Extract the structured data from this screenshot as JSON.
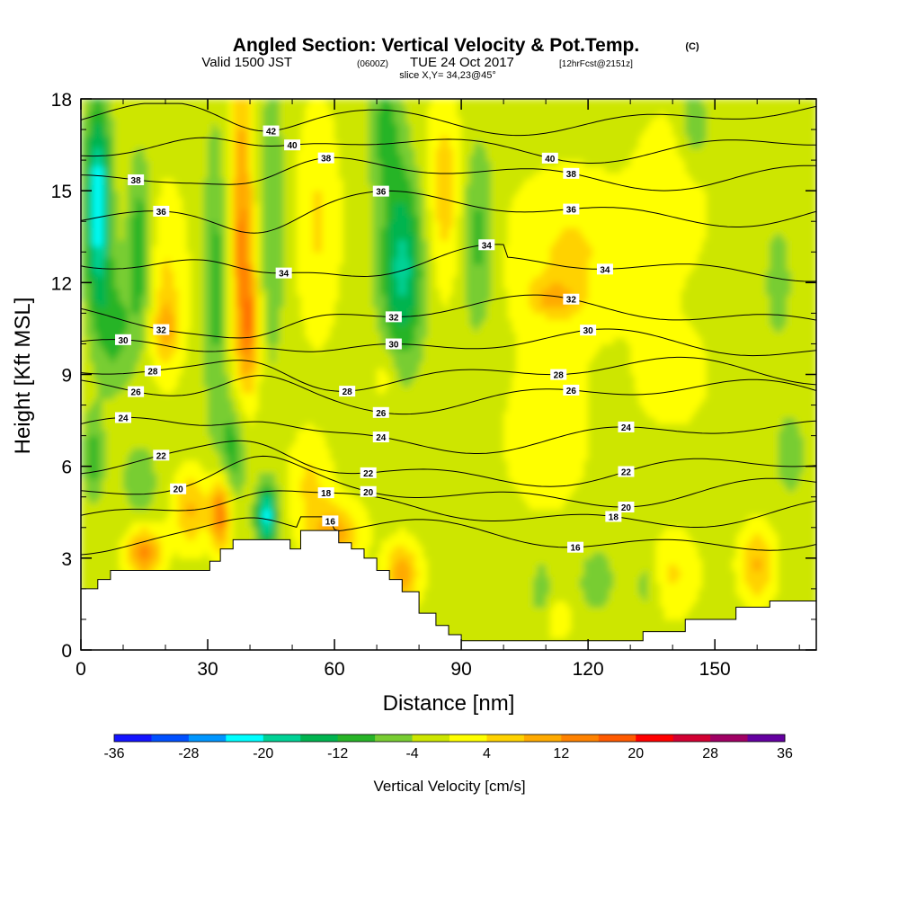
{
  "title": {
    "main": "Angled Section: Vertical Velocity & Pot.Temp.",
    "copyright": "(C)",
    "valid_prefix": "Valid 1500 JST",
    "valid_zulu": "(0600Z)",
    "valid_date": "TUE 24 Oct 2017",
    "forecast": "[12hrFcst@2151z]",
    "slice": "slice X,Y= 34,23@45°"
  },
  "chart_data": {
    "type": "heatmap",
    "xlabel": "Distance [nm]",
    "ylabel": "Height [Kft MSL]",
    "xlim": [
      0,
      174
    ],
    "ylim": [
      0,
      18
    ],
    "xticks": [
      0,
      30,
      60,
      90,
      120,
      150
    ],
    "yticks": [
      0,
      3,
      6,
      9,
      12,
      15,
      18
    ],
    "colorbar": {
      "label": "Vertical Velocity [cm/s]",
      "ticks": [
        -36,
        -28,
        -20,
        -12,
        -4,
        4,
        12,
        20,
        28,
        36
      ],
      "bounds": [
        -36,
        36
      ],
      "step": 4,
      "colors": [
        "#1414ff",
        "#0050ff",
        "#0096ff",
        "#00ffff",
        "#00d296",
        "#00b450",
        "#28b428",
        "#78cd32",
        "#cde600",
        "#ffff00",
        "#ffd200",
        "#ffaa00",
        "#ff8200",
        "#ff5a00",
        "#ff0000",
        "#d20032",
        "#a00064",
        "#6400a0"
      ]
    },
    "terrain": [
      {
        "x": 0,
        "h": 2.0
      },
      {
        "x": 3,
        "h": 2.0
      },
      {
        "x": 4,
        "h": 2.3
      },
      {
        "x": 7,
        "h": 2.6
      },
      {
        "x": 30,
        "h": 2.6
      },
      {
        "x": 30.5,
        "h": 2.9
      },
      {
        "x": 33,
        "h": 3.3
      },
      {
        "x": 36,
        "h": 3.6
      },
      {
        "x": 49,
        "h": 3.6
      },
      {
        "x": 49.5,
        "h": 3.3
      },
      {
        "x": 52,
        "h": 3.9
      },
      {
        "x": 58,
        "h": 3.9
      },
      {
        "x": 61,
        "h": 3.5
      },
      {
        "x": 64,
        "h": 3.3
      },
      {
        "x": 67,
        "h": 3.0
      },
      {
        "x": 70,
        "h": 2.6
      },
      {
        "x": 73,
        "h": 2.3
      },
      {
        "x": 76,
        "h": 1.9
      },
      {
        "x": 80,
        "h": 1.2
      },
      {
        "x": 84,
        "h": 0.8
      },
      {
        "x": 87,
        "h": 0.5
      },
      {
        "x": 90,
        "h": 0.3
      },
      {
        "x": 130,
        "h": 0.3
      },
      {
        "x": 133,
        "h": 0.6
      },
      {
        "x": 142,
        "h": 0.6
      },
      {
        "x": 143,
        "h": 1.0
      },
      {
        "x": 153,
        "h": 1.0
      },
      {
        "x": 155,
        "h": 1.4
      },
      {
        "x": 163,
        "h": 1.6
      },
      {
        "x": 174,
        "h": 1.6
      }
    ],
    "velocity_features": [
      {
        "x": 4,
        "y": 14.5,
        "sx": 3,
        "sy": 3.2,
        "v": -22
      },
      {
        "x": 8,
        "y": 10.5,
        "sx": 4,
        "sy": 2.0,
        "v": -8
      },
      {
        "x": 14,
        "y": 13,
        "sx": 3,
        "sy": 3.0,
        "v": -10
      },
      {
        "x": 3,
        "y": 6.3,
        "sx": 2.5,
        "sy": 1.5,
        "v": -8
      },
      {
        "x": 14,
        "y": 5.5,
        "sx": 4,
        "sy": 1.2,
        "v": -6
      },
      {
        "x": 20,
        "y": 12,
        "sx": 5,
        "sy": 3.0,
        "v": 6
      },
      {
        "x": 20,
        "y": 10.5,
        "sx": 3,
        "sy": 1.0,
        "v": 8
      },
      {
        "x": 32,
        "y": 12,
        "sx": 3,
        "sy": 5.0,
        "v": -8
      },
      {
        "x": 38,
        "y": 14,
        "sx": 3,
        "sy": 5.0,
        "v": 14
      },
      {
        "x": 40,
        "y": 10.5,
        "sx": 2.5,
        "sy": 2.0,
        "v": 12
      },
      {
        "x": 45,
        "y": 14,
        "sx": 3.5,
        "sy": 5.0,
        "v": -6
      },
      {
        "x": 56,
        "y": 14,
        "sx": 5,
        "sy": 3.5,
        "v": 6
      },
      {
        "x": 36,
        "y": 6.5,
        "sx": 3,
        "sy": 1.8,
        "v": -9
      },
      {
        "x": 26,
        "y": 4.6,
        "sx": 4,
        "sy": 1.2,
        "v": 10
      },
      {
        "x": 15,
        "y": 3.2,
        "sx": 4,
        "sy": 0.8,
        "v": 15
      },
      {
        "x": 33,
        "y": 4.5,
        "sx": 2.5,
        "sy": 1.2,
        "v": 18
      },
      {
        "x": 44,
        "y": 4.4,
        "sx": 2.5,
        "sy": 1.0,
        "v": -20
      },
      {
        "x": 54,
        "y": 5.5,
        "sx": 5,
        "sy": 1.5,
        "v": 6
      },
      {
        "x": 60,
        "y": 3.8,
        "sx": 6,
        "sy": 1.0,
        "v": 12
      },
      {
        "x": 76,
        "y": 2.5,
        "sx": 4,
        "sy": 1.0,
        "v": 12
      },
      {
        "x": 76,
        "y": 12.5,
        "sx": 5,
        "sy": 3.0,
        "v": -16
      },
      {
        "x": 72,
        "y": 17,
        "sx": 4,
        "sy": 2.0,
        "v": -8
      },
      {
        "x": 72,
        "y": 9,
        "sx": 3,
        "sy": 1.0,
        "v": 4
      },
      {
        "x": 86,
        "y": 15,
        "sx": 4,
        "sy": 3.0,
        "v": 8
      },
      {
        "x": 94,
        "y": 13.5,
        "sx": 4,
        "sy": 3.0,
        "v": -8
      },
      {
        "x": 116,
        "y": 13,
        "sx": 15,
        "sy": 2.5,
        "v": 6
      },
      {
        "x": 112,
        "y": 11.5,
        "sx": 6,
        "sy": 0.6,
        "v": 8
      },
      {
        "x": 140,
        "y": 15,
        "sx": 8,
        "sy": 2.5,
        "v": 5
      },
      {
        "x": 145,
        "y": 17,
        "sx": 4,
        "sy": 1.5,
        "v": -6
      },
      {
        "x": 165,
        "y": 12,
        "sx": 6,
        "sy": 4.0,
        "v": -3
      },
      {
        "x": 110,
        "y": 7,
        "sx": 12,
        "sy": 3.0,
        "v": 3
      },
      {
        "x": 140,
        "y": 9,
        "sx": 10,
        "sy": 2.0,
        "v": 3
      },
      {
        "x": 168,
        "y": 6.3,
        "sx": 3,
        "sy": 1.2,
        "v": -6
      },
      {
        "x": 140,
        "y": 2.5,
        "sx": 6,
        "sy": 1.3,
        "v": 6
      },
      {
        "x": 160,
        "y": 2.8,
        "sx": 4,
        "sy": 1.2,
        "v": 10
      },
      {
        "x": 122,
        "y": 2.3,
        "sx": 4,
        "sy": 1.0,
        "v": -6
      },
      {
        "x": 134,
        "y": 2.2,
        "sx": 3,
        "sy": 1.2,
        "v": -5
      },
      {
        "x": 109,
        "y": 2.0,
        "sx": 2.5,
        "sy": 1.0,
        "v": -5
      },
      {
        "x": 113,
        "y": 1.0,
        "sx": 3,
        "sy": 0.6,
        "v": 5
      }
    ],
    "theta_contours": [
      {
        "value": 16,
        "base": 3.7,
        "label_x": [
          59,
          117
        ]
      },
      {
        "value": 18,
        "base": 4.5,
        "label_x": [
          58,
          126
        ]
      },
      {
        "value": 20,
        "base": 5.2,
        "label_x": [
          23,
          68,
          129
        ]
      },
      {
        "value": 22,
        "base": 5.9,
        "label_x": [
          19,
          68,
          129
        ]
      },
      {
        "value": 24,
        "base": 7.0,
        "label_x": [
          10,
          71,
          129
        ]
      },
      {
        "value": 26,
        "base": 8.3,
        "label_x": [
          13,
          71,
          116
        ]
      },
      {
        "value": 28,
        "base": 9.0,
        "label_x": [
          17,
          63,
          113
        ]
      },
      {
        "value": 30,
        "base": 9.9,
        "label_x": [
          10,
          74,
          120
        ]
      },
      {
        "value": 32,
        "base": 11.0,
        "label_x": [
          19,
          74,
          116
        ]
      },
      {
        "value": 34,
        "base": 13.0,
        "label_x": [
          48,
          96,
          124
        ]
      },
      {
        "value": 36,
        "base": 14.4,
        "label_x": [
          19,
          71,
          116
        ]
      },
      {
        "value": 38,
        "base": 15.6,
        "label_x": [
          13,
          58,
          116
        ]
      },
      {
        "value": 40,
        "base": 16.5,
        "label_x": [
          50,
          111
        ]
      },
      {
        "value": 42,
        "base": 17.4,
        "label_x": [
          45
        ]
      }
    ]
  }
}
